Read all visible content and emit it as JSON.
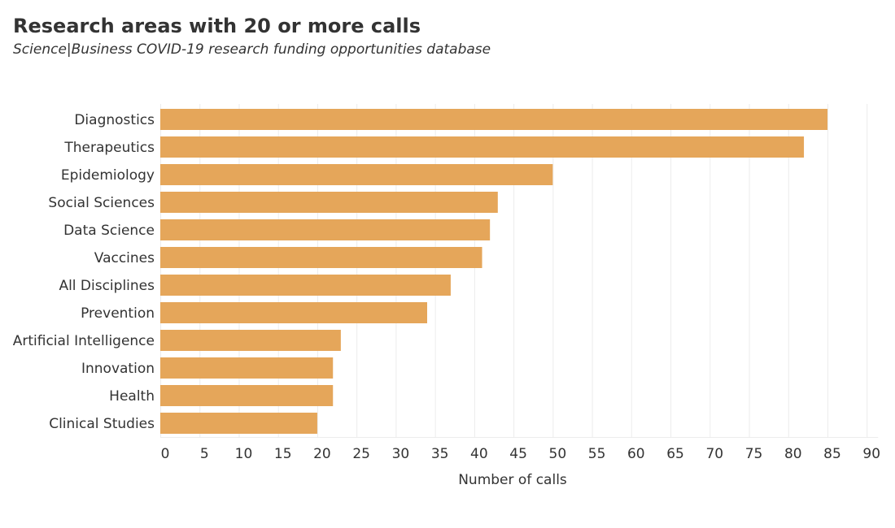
{
  "chart_data": {
    "type": "bar",
    "orientation": "horizontal",
    "title": "Research areas with 20 or more calls",
    "subtitle": "Science|Business COVID-19 research funding opportunities database",
    "categories": [
      "Diagnostics",
      "Therapeutics",
      "Epidemiology",
      "Social Sciences",
      "Data Science",
      "Vaccines",
      "All Disciplines",
      "Prevention",
      "Artificial Intelligence",
      "Innovation",
      "Health",
      "Clinical Studies"
    ],
    "values": [
      85,
      82,
      50,
      43,
      42,
      41,
      37,
      34,
      23,
      22,
      22,
      20
    ],
    "xlabel": "Number of calls",
    "ylabel": "",
    "xlim": [
      0,
      90
    ],
    "xticks": [
      0,
      5,
      10,
      15,
      20,
      25,
      30,
      35,
      40,
      45,
      50,
      55,
      60,
      65,
      70,
      75,
      80,
      85,
      90
    ],
    "grid": "vertical",
    "bar_color": "#e5a65a"
  }
}
